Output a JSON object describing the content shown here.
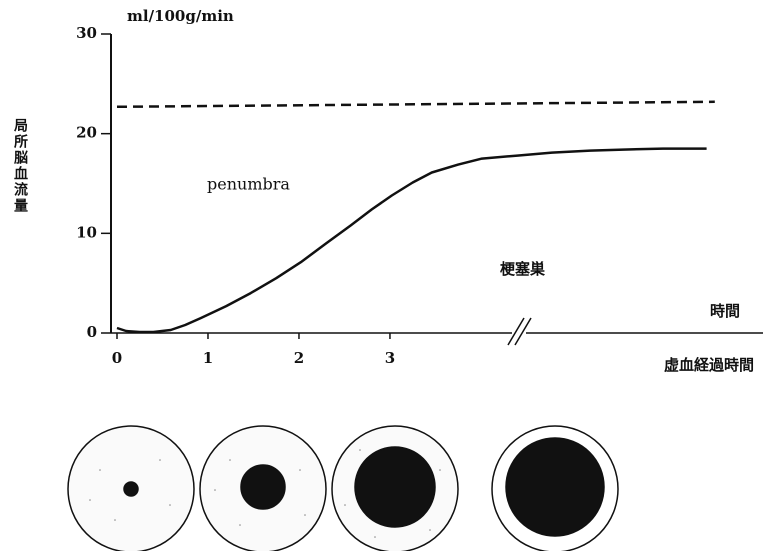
{
  "chart_data": {
    "type": "line",
    "y_unit_label": "ml/100g/min",
    "y_axis_label": "局所脳血流量",
    "x_axis_label": "虚血経過時間",
    "x_axis_end_label": "時間",
    "annotations": [
      "penumbra",
      "梗塞巣"
    ],
    "ylim": [
      0,
      30
    ],
    "yticks": [
      0,
      10,
      20,
      30
    ],
    "xlim": [
      0,
      7.1
    ],
    "xticks": [
      0,
      1,
      2,
      3
    ],
    "series": [
      {
        "color": "#111111",
        "dash": false,
        "x": [
          0,
          0.1,
          0.25,
          0.4,
          0.59,
          0.75,
          0.92,
          1.2,
          1.47,
          1.75,
          2.02,
          2.3,
          2.57,
          2.8,
          3.02,
          3.25,
          3.46,
          3.75,
          4.01,
          4.4,
          4.78,
          5.2,
          5.56,
          6.0,
          6.48
        ],
        "values": [
          0.5,
          0.2,
          0.1,
          0.1,
          0.3,
          0.8,
          1.5,
          2.7,
          4,
          5.5,
          7.1,
          9,
          10.8,
          12.4,
          13.8,
          15.1,
          16.1,
          16.9,
          17.5,
          17.8,
          18.1,
          18.3,
          18.4,
          18.5,
          18.5
        ]
      },
      {
        "color": "#111111",
        "dash": true,
        "x": [
          0,
          6.57
        ],
        "values": [
          22.7,
          23.2
        ]
      }
    ]
  }
}
